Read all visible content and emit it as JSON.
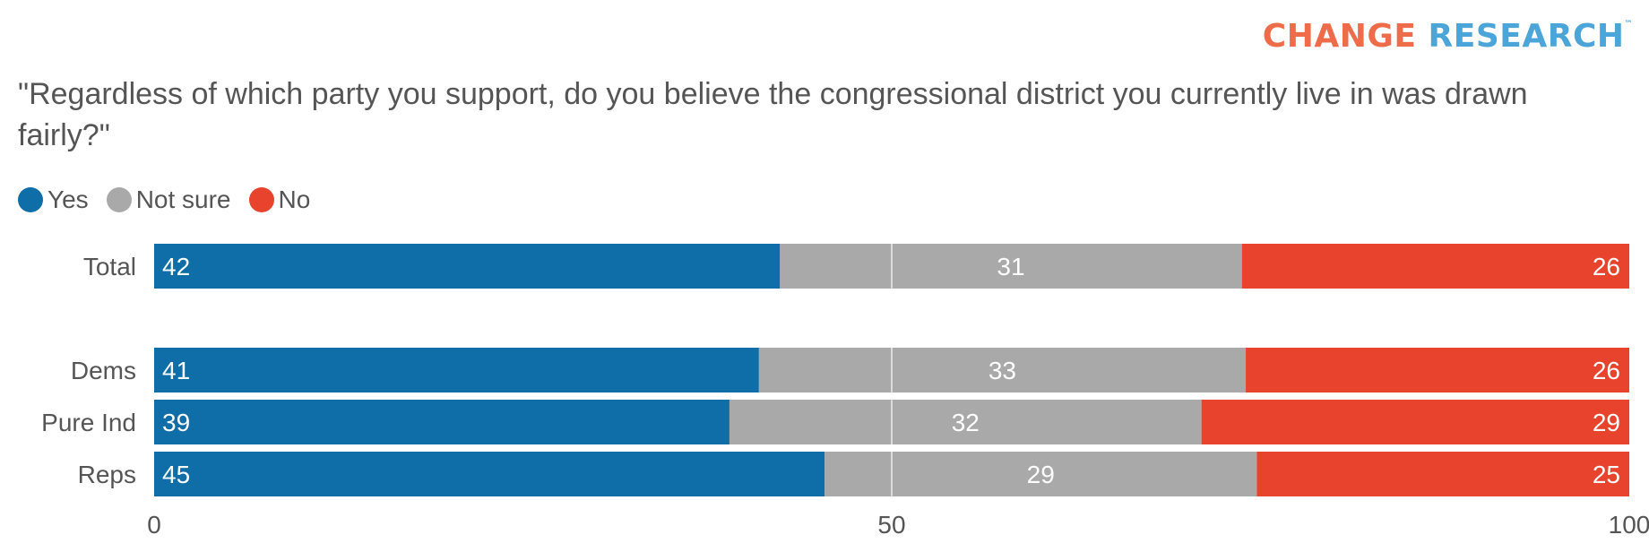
{
  "brand": {
    "word1": "CHANGE",
    "word2": "RESEARCH",
    "tm": "™",
    "color1": "#ef6c4a",
    "color2": "#4ba5d8"
  },
  "question": "\"Regardless of which party you support, do you believe the congressional district you currently live in was drawn fairly?\"",
  "chart_data": {
    "type": "bar",
    "orientation": "horizontal",
    "stacked": true,
    "title": "\"Regardless of which party you support, do you believe the congressional district you currently live in was drawn fairly?\"",
    "categories": [
      "Total",
      "Dems",
      "Pure Ind",
      "Reps"
    ],
    "series": [
      {
        "name": "Yes",
        "color": "#0f6ea8",
        "values": [
          42,
          41,
          39,
          45
        ]
      },
      {
        "name": "Not sure",
        "color": "#a9a9a9",
        "values": [
          31,
          33,
          32,
          29
        ]
      },
      {
        "name": "No",
        "color": "#e8432d",
        "values": [
          26,
          26,
          29,
          25
        ]
      }
    ],
    "xlim": [
      0,
      100
    ],
    "xticks": [
      "0",
      "50",
      "100"
    ],
    "gridlines": [
      50
    ],
    "legend": "top-left",
    "xlabel": "",
    "ylabel": ""
  }
}
